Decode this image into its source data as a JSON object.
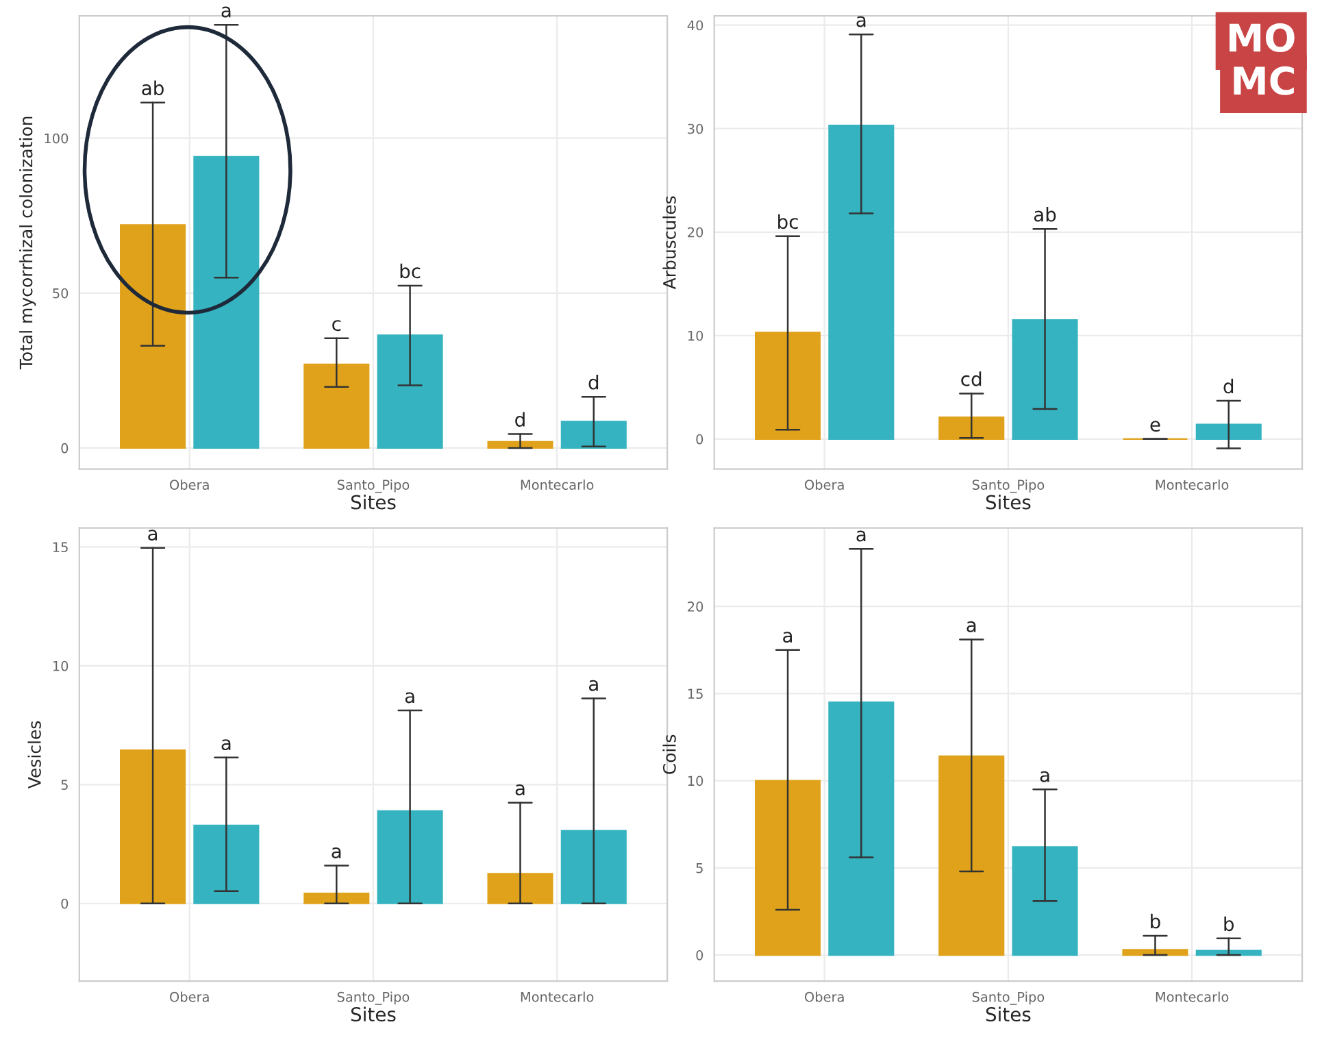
{
  "chart_data": [
    {
      "type": "bar",
      "xlabel": "Sites",
      "ylabel": "Total mycorrhizal colonization",
      "categories": [
        "Obera",
        "Santo_Pipo",
        "Montecarlo"
      ],
      "ylim": [
        -6.8,
        139.5
      ],
      "yticks": [
        0,
        50,
        100
      ],
      "grid": true,
      "annotations": [
        "ab",
        "a",
        "c",
        "bc",
        "d",
        "d"
      ],
      "series": [
        {
          "color": "#e0a21a",
          "values": [
            72,
            27,
            2
          ],
          "errors": [
            [
              33,
              111.5
            ],
            [
              19.7,
              35.4
            ],
            [
              0,
              4.5
            ]
          ]
        },
        {
          "color": "#35b3c0",
          "values": [
            94,
            36.4,
            8.5
          ],
          "errors": [
            [
              55,
              136.6
            ],
            [
              20.2,
              52.4
            ],
            [
              0.5,
              16.5
            ]
          ]
        }
      ]
    },
    {
      "type": "bar",
      "xlabel": "Sites",
      "ylabel": "Arbuscules",
      "categories": [
        "Obera",
        "Santo_Pipo",
        "Montecarlo"
      ],
      "ylim": [
        -2.9,
        40.9
      ],
      "yticks": [
        0,
        10,
        20,
        30,
        40
      ],
      "grid": true,
      "annotations": [
        "bc",
        "a",
        "cd",
        "ab",
        "e",
        "d",
        "MO",
        "MC"
      ],
      "series": [
        {
          "color": "#e0a21a",
          "values": [
            10.3,
            2.1,
            0
          ],
          "errors": [
            [
              0.9,
              19.6
            ],
            [
              0.1,
              4.4
            ],
            [
              0,
              0
            ]
          ]
        },
        {
          "color": "#35b3c0",
          "values": [
            30.3,
            11.5,
            1.4
          ],
          "errors": [
            [
              21.8,
              39.1
            ],
            [
              2.9,
              20.3
            ],
            [
              -0.9,
              3.7
            ]
          ]
        }
      ]
    },
    {
      "type": "bar",
      "xlabel": "Sites",
      "ylabel": "Vesicles",
      "categories": [
        "Obera",
        "Santo_Pipo",
        "Montecarlo"
      ],
      "ylim": [
        -3.27,
        15.8
      ],
      "yticks": [
        0,
        5,
        10,
        15
      ],
      "grid": true,
      "annotations": [
        "a",
        "a",
        "a",
        "a",
        "a",
        "a"
      ],
      "series": [
        {
          "color": "#e0a21a",
          "values": [
            6.45,
            0.42,
            1.25
          ],
          "errors": [
            [
              0,
              14.96
            ],
            [
              0,
              1.59
            ],
            [
              0,
              4.24
            ]
          ]
        },
        {
          "color": "#35b3c0",
          "values": [
            3.28,
            3.89,
            3.06
          ],
          "errors": [
            [
              0.52,
              6.14
            ],
            [
              0,
              8.12
            ],
            [
              0,
              8.63
            ]
          ]
        }
      ]
    },
    {
      "type": "bar",
      "xlabel": "Sites",
      "ylabel": "Coils",
      "categories": [
        "Obera",
        "Santo_Pipo",
        "Montecarlo"
      ],
      "ylim": [
        -1.5,
        24.5
      ],
      "yticks": [
        0,
        5,
        10,
        15,
        20
      ],
      "grid": true,
      "annotations": [
        "a",
        "a",
        "a",
        "a",
        "b",
        "b"
      ],
      "series": [
        {
          "color": "#e0a21a",
          "values": [
            10,
            11.4,
            0.3
          ],
          "errors": [
            [
              2.6,
              17.5
            ],
            [
              4.8,
              18.1
            ],
            [
              0,
              1.1
            ]
          ]
        },
        {
          "color": "#35b3c0",
          "values": [
            14.5,
            6.2,
            0.25
          ],
          "errors": [
            [
              5.6,
              23.3
            ],
            [
              3.1,
              9.5
            ],
            [
              0,
              0.95
            ]
          ]
        }
      ]
    }
  ]
}
